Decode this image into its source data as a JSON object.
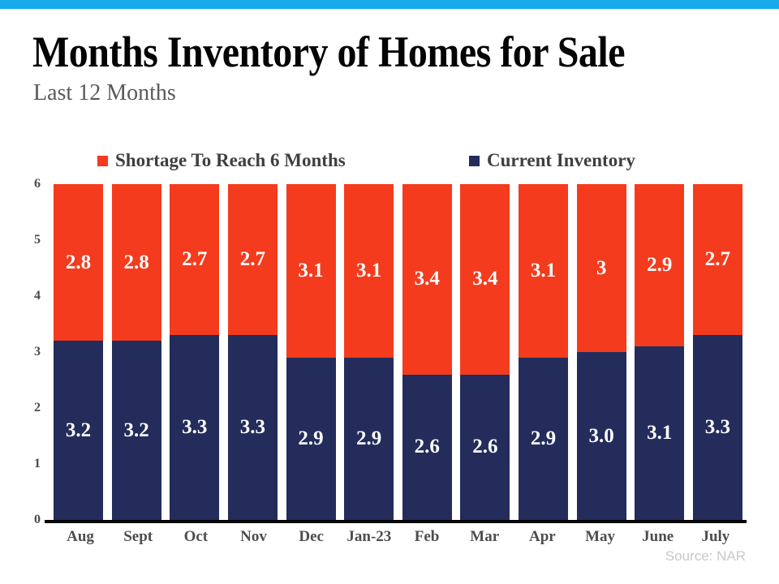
{
  "header": {
    "title": "Months Inventory of Homes for Sale",
    "subtitle": "Last 12 Months"
  },
  "colors": {
    "accent_bar": "#18AAEA",
    "shortage_red": "#F43B1E",
    "inventory_navy": "#232C5B",
    "subtitle_text": "#595959",
    "legend_text": "#3F3F3F",
    "axis_text": "#4D4D4D",
    "source_text": "#C9C9C9"
  },
  "chart_data": {
    "type": "bar",
    "stacked": true,
    "title": "Months Inventory of Homes for Sale",
    "subtitle": "Last 12 Months",
    "categories": [
      "Aug",
      "Sept",
      "Oct",
      "Nov",
      "Dec",
      "Jan-23",
      "Feb",
      "Mar",
      "Apr",
      "May",
      "June",
      "July"
    ],
    "series": [
      {
        "name": "Shortage To Reach 6 Months",
        "color": "#F43B1E",
        "values": [
          2.8,
          2.8,
          2.7,
          2.7,
          3.1,
          3.1,
          3.4,
          3.4,
          3.1,
          3,
          2.9,
          2.7
        ],
        "labels": [
          "2.8",
          "2.8",
          "2.7",
          "2.7",
          "3.1",
          "3.1",
          "3.4",
          "3.4",
          "3.1",
          "3",
          "2.9",
          "2.7"
        ]
      },
      {
        "name": "Current Inventory",
        "color": "#232C5B",
        "values": [
          3.2,
          3.2,
          3.3,
          3.3,
          2.9,
          2.9,
          2.6,
          2.6,
          2.9,
          3.0,
          3.1,
          3.3
        ],
        "labels": [
          "3.2",
          "3.2",
          "3.3",
          "3.3",
          "2.9",
          "2.9",
          "2.6",
          "2.6",
          "2.9",
          "3.0",
          "3.1",
          "3.3"
        ]
      }
    ],
    "ylim": [
      0,
      6
    ],
    "yticks": [
      "0",
      "1",
      "2",
      "3",
      "4",
      "5",
      "6"
    ],
    "legend_position": "top",
    "grid": false
  },
  "footer": {
    "source": "Source: NAR"
  }
}
